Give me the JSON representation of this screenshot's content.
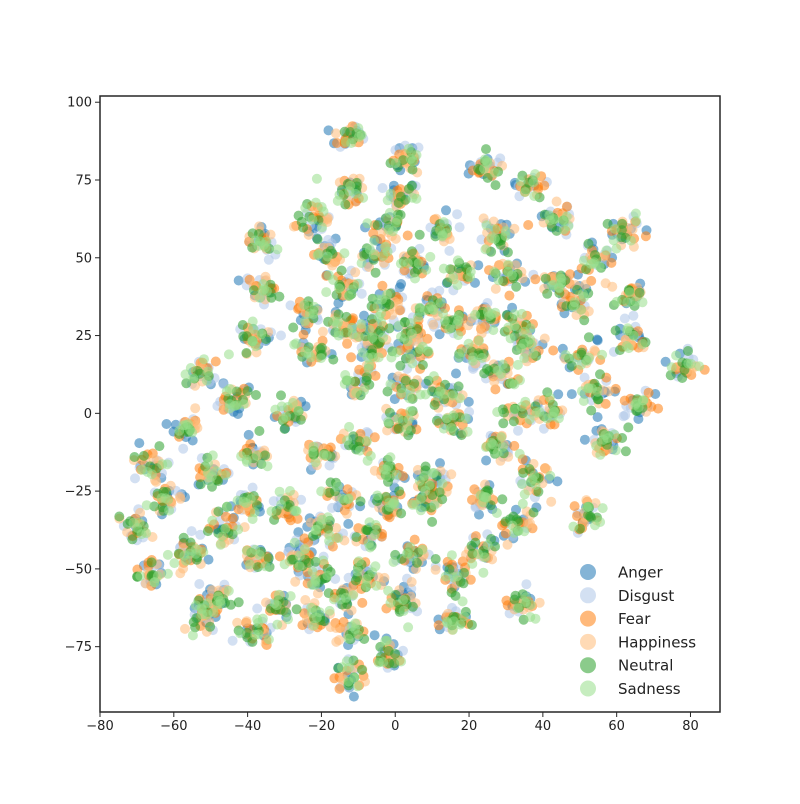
{
  "chart_data": {
    "type": "scatter",
    "title": "",
    "xlabel": "",
    "ylabel": "",
    "xlim": [
      -80,
      88
    ],
    "ylim": [
      -96,
      102
    ],
    "x_ticks": [
      -80,
      -60,
      -40,
      -20,
      0,
      20,
      40,
      60,
      80
    ],
    "y_ticks": [
      -75,
      -50,
      -25,
      0,
      25,
      50,
      75,
      100
    ],
    "x_tick_labels": [
      "−80",
      "−60",
      "−40",
      "−20",
      "0",
      "20",
      "40",
      "60",
      "80"
    ],
    "y_tick_labels": [
      "−75",
      "−50",
      "−25",
      "0",
      "25",
      "50",
      "75",
      "100"
    ],
    "grid": false,
    "legend_position": "lower-right",
    "series": [
      {
        "name": "Anger",
        "color": "#1f77b4"
      },
      {
        "name": "Disgust",
        "color": "#aec7e8"
      },
      {
        "name": "Fear",
        "color": "#ff7f0e"
      },
      {
        "name": "Happiness",
        "color": "#ffbb78"
      },
      {
        "name": "Neutral",
        "color": "#2ca02c"
      },
      {
        "name": "Sadness",
        "color": "#98df8a"
      }
    ],
    "cluster_centers": [
      [
        -12,
        89
      ],
      [
        3,
        82
      ],
      [
        25,
        79
      ],
      [
        36,
        74
      ],
      [
        -12,
        72
      ],
      [
        2,
        70
      ],
      [
        -22,
        62
      ],
      [
        -2,
        61
      ],
      [
        13,
        59
      ],
      [
        28,
        57
      ],
      [
        44,
        62
      ],
      [
        62,
        59
      ],
      [
        -36,
        55
      ],
      [
        -18,
        51
      ],
      [
        -5,
        51
      ],
      [
        5,
        48
      ],
      [
        18,
        45
      ],
      [
        31,
        45
      ],
      [
        54,
        49
      ],
      [
        44,
        42
      ],
      [
        -36,
        40
      ],
      [
        -14,
        40
      ],
      [
        -2,
        36
      ],
      [
        10,
        35
      ],
      [
        25,
        31
      ],
      [
        49,
        36
      ],
      [
        64,
        38
      ],
      [
        -24,
        32
      ],
      [
        -14,
        28
      ],
      [
        -6,
        27
      ],
      [
        4,
        27
      ],
      [
        15,
        29
      ],
      [
        33,
        28
      ],
      [
        -38,
        24
      ],
      [
        -22,
        20
      ],
      [
        -6,
        18
      ],
      [
        5,
        19
      ],
      [
        21,
        19
      ],
      [
        37,
        21
      ],
      [
        51,
        18
      ],
      [
        64,
        24
      ],
      [
        78,
        15
      ],
      [
        -52,
        13
      ],
      [
        -10,
        9
      ],
      [
        3,
        8
      ],
      [
        13,
        6
      ],
      [
        30,
        12
      ],
      [
        54,
        8
      ],
      [
        -44,
        4
      ],
      [
        -28,
        0
      ],
      [
        2,
        -3
      ],
      [
        16,
        -3
      ],
      [
        34,
        0
      ],
      [
        42,
        1
      ],
      [
        66,
        3
      ],
      [
        -56,
        -5
      ],
      [
        -38,
        -12
      ],
      [
        -10,
        -9
      ],
      [
        -20,
        -13
      ],
      [
        28,
        -11
      ],
      [
        58,
        -9
      ],
      [
        -66,
        -17
      ],
      [
        -50,
        -19
      ],
      [
        -2,
        -19
      ],
      [
        10,
        -21
      ],
      [
        37,
        -21
      ],
      [
        -62,
        -28
      ],
      [
        -40,
        -29
      ],
      [
        -30,
        -30
      ],
      [
        -14,
        -27
      ],
      [
        -2,
        -29
      ],
      [
        8,
        -28
      ],
      [
        24,
        -27
      ],
      [
        -70,
        -37
      ],
      [
        -46,
        -37
      ],
      [
        -20,
        -38
      ],
      [
        -8,
        -39
      ],
      [
        33,
        -35
      ],
      [
        52,
        -33
      ],
      [
        -56,
        -45
      ],
      [
        -38,
        -47
      ],
      [
        -26,
        -45
      ],
      [
        4,
        -46
      ],
      [
        23,
        -45
      ],
      [
        -66,
        -51
      ],
      [
        -22,
        -52
      ],
      [
        -8,
        -52
      ],
      [
        16,
        -52
      ],
      [
        -48,
        -59
      ],
      [
        -32,
        -62
      ],
      [
        -14,
        -59
      ],
      [
        2,
        -61
      ],
      [
        35,
        -61
      ],
      [
        -52,
        -65
      ],
      [
        -22,
        -66
      ],
      [
        16,
        -67
      ],
      [
        -38,
        -70
      ],
      [
        -12,
        -70
      ],
      [
        -2,
        -78
      ],
      [
        -12,
        -84
      ]
    ]
  }
}
